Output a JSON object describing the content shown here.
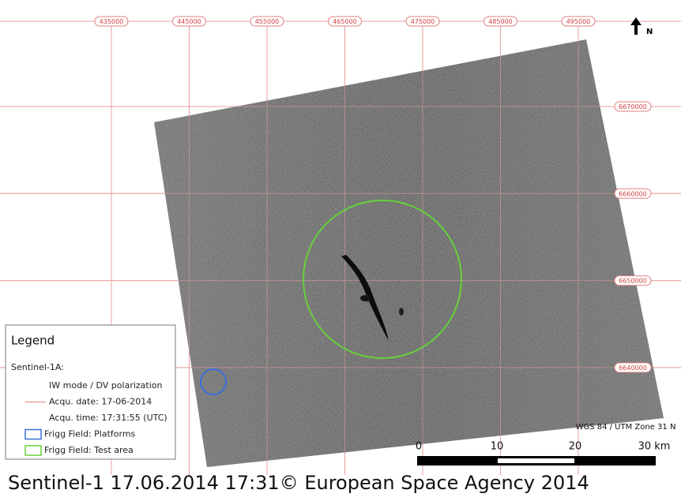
{
  "grid": {
    "eastings": [
      "435000",
      "445000",
      "455000",
      "465000",
      "475000",
      "485000",
      "495000"
    ],
    "northings": [
      "6670000",
      "6660000",
      "6650000",
      "6640000"
    ]
  },
  "north_label": "N",
  "legend": {
    "title": "Legend",
    "group": "Sentinel-1A:",
    "items": [
      "IW mode / DV polarization",
      "Acqu. date: 17-06-2014",
      "Acqu. time: 17:31:55 (UTC)",
      "Frigg Field: Platforms",
      "Frigg Field: Test area"
    ]
  },
  "crs": "WGS 84 / UTM Zone 31 N",
  "scale_bar": [
    "0",
    "10",
    "20",
    "30 km"
  ],
  "caption": "Sentinel-1 17.06.2014 17:31© European Space Agency 2014"
}
